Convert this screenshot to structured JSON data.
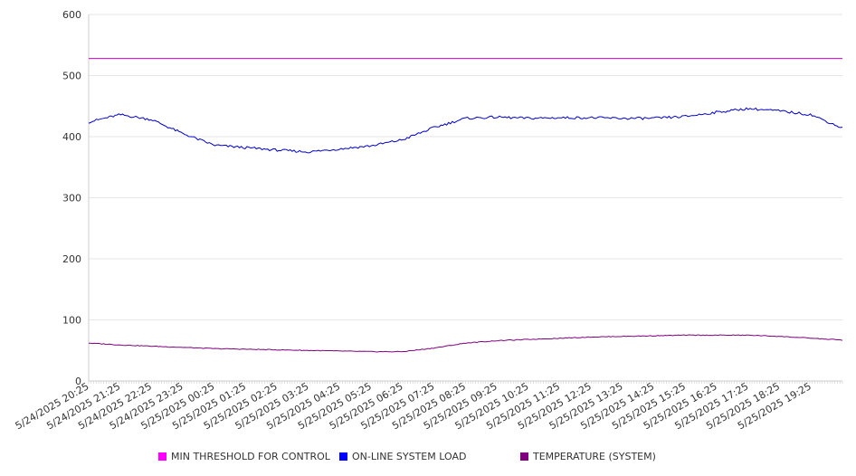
{
  "chart_data": {
    "type": "line",
    "title": "",
    "xlabel": "",
    "ylabel": "",
    "ylim": [
      0,
      600
    ],
    "yticks": [
      0,
      100,
      200,
      300,
      400,
      500,
      600
    ],
    "grid": "horizontal",
    "legend_position": "bottom",
    "x_tick_labels": [
      "5/24/2025 20:25",
      "5/24/2025 21:25",
      "5/24/2025 22:25",
      "5/24/2025 23:25",
      "5/25/2025 00:25",
      "5/25/2025 01:25",
      "5/25/2025 02:25",
      "5/25/2025 03:25",
      "5/25/2025 04:25",
      "5/25/2025 05:25",
      "5/25/2025 06:25",
      "5/25/2025 07:25",
      "5/25/2025 08:25",
      "5/25/2025 09:25",
      "5/25/2025 10:25",
      "5/25/2025 11:25",
      "5/25/2025 12:25",
      "5/25/2025 13:25",
      "5/25/2025 14:25",
      "5/25/2025 15:25",
      "5/25/2025 16:25",
      "5/25/2025 17:25",
      "5/25/2025 18:25",
      "5/25/2025 19:25"
    ],
    "series": [
      {
        "name": "MIN THRESHOLD FOR CONTROL",
        "color": "#cc00cc",
        "values": [
          528,
          528,
          528,
          528,
          528,
          528,
          528,
          528,
          528,
          528,
          528,
          528,
          528,
          528,
          528,
          528,
          528,
          528,
          528,
          528,
          528,
          528,
          528,
          528,
          528
        ]
      },
      {
        "name": "ON-LINE SYSTEM LOAD",
        "color": "#0000cc",
        "values": [
          424,
          436,
          428,
          405,
          386,
          382,
          378,
          375,
          380,
          385,
          395,
          415,
          430,
          432,
          430,
          431,
          431,
          430,
          430,
          433,
          440,
          446,
          442,
          436,
          414
        ]
      },
      {
        "name": "TEMPERATURE (SYSTEM)",
        "color": "#800080",
        "values": [
          62,
          59,
          57,
          55,
          53,
          52,
          51,
          50,
          49,
          48,
          48,
          54,
          62,
          66,
          68,
          70,
          72,
          73,
          74,
          75,
          75,
          75,
          73,
          70,
          67
        ]
      }
    ]
  },
  "colors": {
    "grid": "#e6e6e6",
    "axis": "#cccccc",
    "text": "#333333",
    "legend_threshold": "#ff00ff",
    "legend_load": "#0000ff",
    "legend_temperature": "#800080"
  }
}
